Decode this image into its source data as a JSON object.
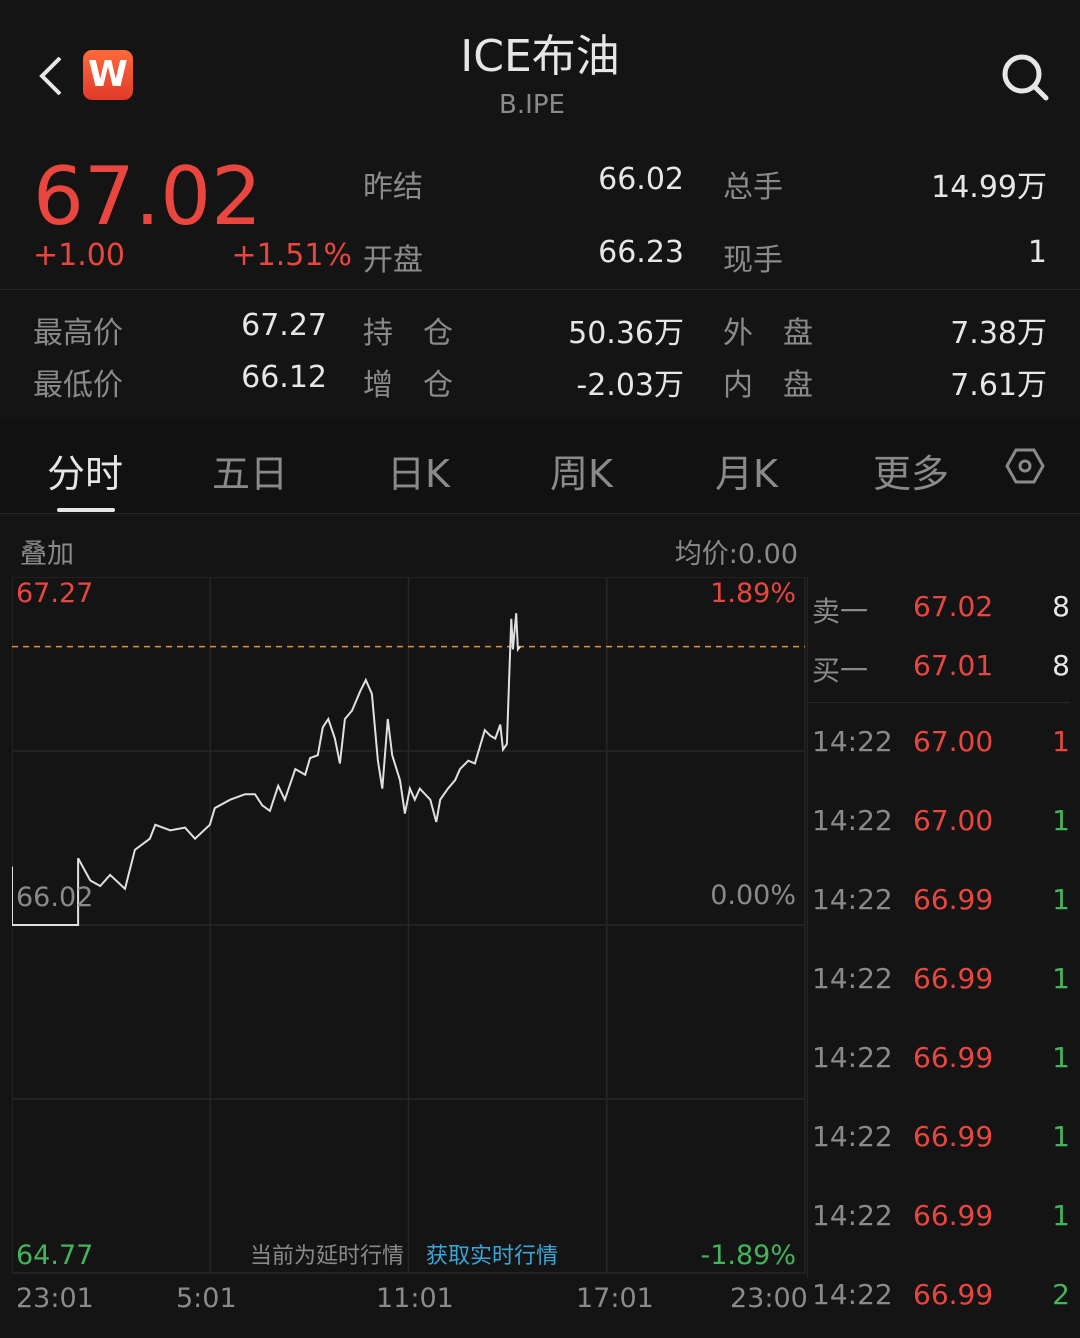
{
  "header": {
    "title": "ICE布油",
    "code": "B.IPE",
    "logo_letter": "W",
    "back_icon": "chevron-left-icon",
    "search_icon": "search-icon"
  },
  "quote": {
    "last": "67.02",
    "change": "+1.00",
    "change_pct": "+1.51%",
    "fields": [
      {
        "label": "昨结",
        "value": "66.02"
      },
      {
        "label": "总手",
        "value": "14.99万"
      },
      {
        "label": "开盘",
        "value": "66.23"
      },
      {
        "label": "现手",
        "value": "1"
      },
      {
        "label": "最高价",
        "value": "67.27"
      },
      {
        "label": "持　仓",
        "value": "50.36万"
      },
      {
        "label": "外　盘",
        "value": "7.38万"
      },
      {
        "label": "最低价",
        "value": "66.12"
      },
      {
        "label": "增　仓",
        "value": "-2.03万"
      },
      {
        "label": "内　盘",
        "value": "7.61万"
      }
    ]
  },
  "tabs": [
    {
      "label": "分时",
      "active": true
    },
    {
      "label": "五日"
    },
    {
      "label": "日K"
    },
    {
      "label": "周K"
    },
    {
      "label": "月K"
    },
    {
      "label": "更多"
    }
  ],
  "settings_icon": "hexagon-settings-icon",
  "chart_toolbar": {
    "overlay": "叠加",
    "avg_price": "均价:0.00"
  },
  "delay_notice": {
    "text": "当前为延时行情",
    "link": "获取实时行情"
  },
  "colors": {
    "up": "#e8463f",
    "down": "#45b35c",
    "line": "#e0e0e0",
    "ref_line": "#e0913a",
    "link": "#3aa6d8"
  },
  "chart_data": {
    "type": "line",
    "y_labels_left": {
      "top": "67.27",
      "mid": "66.02",
      "bottom": "64.77"
    },
    "y_labels_right": {
      "top": "1.89%",
      "mid": "0.00%",
      "bottom": "-1.89%"
    },
    "ylim": [
      64.77,
      67.27
    ],
    "x_ticks": [
      "23:01",
      "5:01",
      "11:01",
      "17:01",
      "23:00"
    ],
    "reference_price": 66.02,
    "current_price_line": 67.02,
    "grid": true,
    "points": [
      [
        "23:01",
        66.23
      ],
      [
        "23:01",
        66.02
      ],
      [
        "01:01",
        66.02
      ],
      [
        "01:01",
        66.26
      ],
      [
        "01:23",
        66.18
      ],
      [
        "01:41",
        66.16
      ],
      [
        "01:59",
        66.2
      ],
      [
        "02:26",
        66.15
      ],
      [
        "02:44",
        66.29
      ],
      [
        "03:11",
        66.33
      ],
      [
        "03:21",
        66.38
      ],
      [
        "03:48",
        66.36
      ],
      [
        "04:15",
        66.37
      ],
      [
        "04:33",
        66.33
      ],
      [
        "05:00",
        66.38
      ],
      [
        "05:09",
        66.44
      ],
      [
        "05:37",
        66.47
      ],
      [
        "06:04",
        66.49
      ],
      [
        "06:22",
        66.49
      ],
      [
        "06:35",
        66.45
      ],
      [
        "06:49",
        66.43
      ],
      [
        "07:04",
        66.52
      ],
      [
        "07:16",
        66.47
      ],
      [
        "07:35",
        66.58
      ],
      [
        "07:53",
        66.56
      ],
      [
        "08:02",
        66.62
      ],
      [
        "08:16",
        66.63
      ],
      [
        "08:25",
        66.73
      ],
      [
        "08:35",
        66.76
      ],
      [
        "08:47",
        66.69
      ],
      [
        "08:56",
        66.6
      ],
      [
        "09:05",
        66.76
      ],
      [
        "09:18",
        66.79
      ],
      [
        "09:33",
        66.86
      ],
      [
        "09:43",
        66.9
      ],
      [
        "09:54",
        66.85
      ],
      [
        "10:05",
        66.61
      ],
      [
        "10:13",
        66.51
      ],
      [
        "10:23",
        66.76
      ],
      [
        "10:31",
        66.63
      ],
      [
        "10:45",
        66.54
      ],
      [
        "10:54",
        66.42
      ],
      [
        "11:03",
        66.51
      ],
      [
        "11:12",
        66.47
      ],
      [
        "11:21",
        66.51
      ],
      [
        "11:40",
        66.47
      ],
      [
        "11:51",
        66.39
      ],
      [
        "11:58",
        66.47
      ],
      [
        "12:12",
        66.51
      ],
      [
        "12:25",
        66.54
      ],
      [
        "12:34",
        66.58
      ],
      [
        "12:49",
        66.61
      ],
      [
        "13:01",
        66.6
      ],
      [
        "13:19",
        66.72
      ],
      [
        "13:29",
        66.7
      ],
      [
        "13:38",
        66.69
      ],
      [
        "13:47",
        66.74
      ],
      [
        "13:52",
        66.65
      ],
      [
        "13:59",
        66.67
      ],
      [
        "14:03",
        66.9
      ],
      [
        "14:07",
        67.12
      ],
      [
        "14:10",
        67.01
      ],
      [
        "14:16",
        67.14
      ],
      [
        "14:19",
        67.01
      ],
      [
        "14:23",
        67.02
      ]
    ]
  },
  "order_book": [
    {
      "label": "卖一",
      "price": "67.02",
      "qty": "8"
    },
    {
      "label": "买一",
      "price": "67.01",
      "qty": "8"
    }
  ],
  "trades": [
    {
      "time": "14:22",
      "price": "67.00",
      "qty": "1",
      "side": "up"
    },
    {
      "time": "14:22",
      "price": "67.00",
      "qty": "1",
      "side": "down"
    },
    {
      "time": "14:22",
      "price": "66.99",
      "qty": "1",
      "side": "down"
    },
    {
      "time": "14:22",
      "price": "66.99",
      "qty": "1",
      "side": "down"
    },
    {
      "time": "14:22",
      "price": "66.99",
      "qty": "1",
      "side": "down"
    },
    {
      "time": "14:22",
      "price": "66.99",
      "qty": "1",
      "side": "down"
    },
    {
      "time": "14:22",
      "price": "66.99",
      "qty": "1",
      "side": "down"
    },
    {
      "time": "14:22",
      "price": "66.99",
      "qty": "2",
      "side": "down"
    }
  ]
}
